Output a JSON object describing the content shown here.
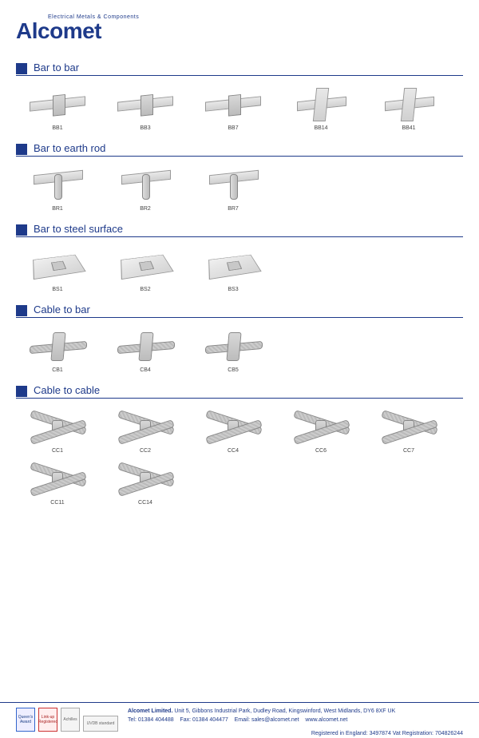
{
  "brand": {
    "tagline": "Electrical Metals & Components",
    "name": "Alcomet",
    "primary_color": "#1e3a8a"
  },
  "sections": [
    {
      "title": "Bar to bar",
      "items": [
        {
          "code": "BB1",
          "shape": "bar"
        },
        {
          "code": "BB3",
          "shape": "bar"
        },
        {
          "code": "BB7",
          "shape": "bar"
        },
        {
          "code": "BB14",
          "shape": "cross"
        },
        {
          "code": "BB41",
          "shape": "cross"
        }
      ]
    },
    {
      "title": "Bar to earth rod",
      "items": [
        {
          "code": "BR1",
          "shape": "rod"
        },
        {
          "code": "BR2",
          "shape": "rod"
        },
        {
          "code": "BR7",
          "shape": "rod"
        }
      ]
    },
    {
      "title": "Bar to steel surface",
      "items": [
        {
          "code": "BS1",
          "shape": "plate"
        },
        {
          "code": "BS2",
          "shape": "plate"
        },
        {
          "code": "BS3",
          "shape": "plate"
        }
      ]
    },
    {
      "title": "Cable to bar",
      "items": [
        {
          "code": "CB1",
          "shape": "cable"
        },
        {
          "code": "CB4",
          "shape": "cable"
        },
        {
          "code": "CB5",
          "shape": "cable"
        }
      ]
    },
    {
      "title": "Cable to cable",
      "items": [
        {
          "code": "CC1",
          "shape": "cablex"
        },
        {
          "code": "CC2",
          "shape": "cablex"
        },
        {
          "code": "CC4",
          "shape": "cablex"
        },
        {
          "code": "CC6",
          "shape": "cablex"
        },
        {
          "code": "CC7",
          "shape": "cablex"
        },
        {
          "code": "CC11",
          "shape": "cablex"
        },
        {
          "code": "CC14",
          "shape": "cablex"
        }
      ]
    }
  ],
  "footer": {
    "company": "Alcomet Limited.",
    "address": "Unit 5, Gibbons Industrial Park, Dudley Road, Kingswinford, West Midlands, DY6 8XF  UK",
    "tel_label": "Tel:",
    "tel": "01384 404488",
    "fax_label": "Fax:",
    "fax": "01384 404477",
    "email_label": "Email:",
    "email": "sales@alcomet.net",
    "web": "www.alcomet.net",
    "registration": "Registered in England: 3497874  Vat Registration: 704826244",
    "badges": [
      "Queen's Award",
      "Link-up Registered",
      "Achilles",
      "UVDB standard"
    ]
  }
}
